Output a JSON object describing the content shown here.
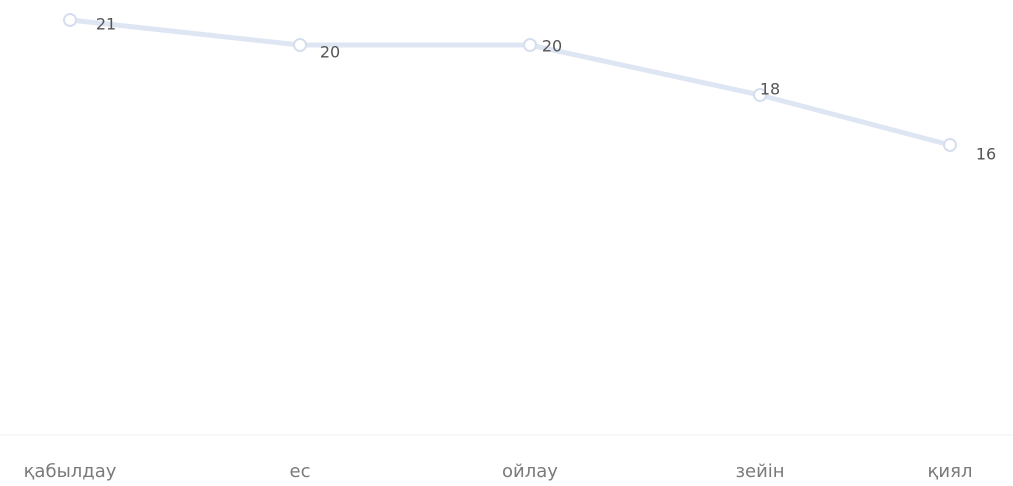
{
  "chart_data": {
    "type": "line",
    "title": "",
    "xlabel": "",
    "ylabel": "",
    "categories": [
      "қабылдау",
      "ес",
      "ойлау",
      "зейін",
      "қиял"
    ],
    "series": [
      {
        "values": [
          21,
          20,
          20,
          18,
          16
        ]
      }
    ],
    "data_labels": [
      "21",
      "20",
      "20",
      "18",
      "16"
    ],
    "ylim": [
      0,
      22
    ],
    "grid": false,
    "legend": "none",
    "colors": {
      "line": "#dfe6f3",
      "marker_edge": "#d6deee",
      "label": "#555555",
      "category": "#7a7a7a"
    }
  }
}
